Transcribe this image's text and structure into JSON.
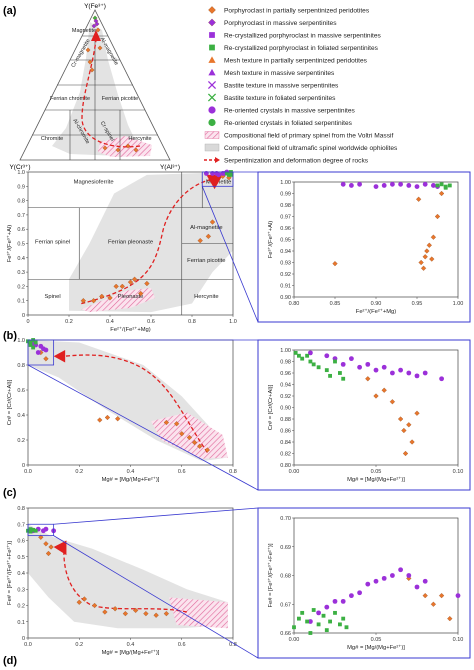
{
  "panel_labels": [
    "(a)",
    "(b)",
    "(c)",
    "(d)"
  ],
  "ternary": {
    "apex_top": "Y(Fe³⁺)",
    "apex_left": "Y(Cr³⁺)",
    "apex_right": "Y(Al³⁺)",
    "fields": [
      "Magnetite",
      "Cr-magnetite",
      "Al-magnetite",
      "Ferrian chromite",
      "Ferrian picotite",
      "Chromite",
      "Al-chromite",
      "Cr-spinel",
      "Hercynite"
    ]
  },
  "legend": [
    {
      "label": "Porphyroclast in partially serpentinized peridotites",
      "marker": "diamond",
      "color": "#e8762c"
    },
    {
      "label": "Porphyroclast in massive serpentinites",
      "marker": "diamond",
      "color": "#9b30d9"
    },
    {
      "label": "Re-crystallized porphyroclast in massive serpentinites",
      "marker": "square",
      "color": "#9b30d9"
    },
    {
      "label": "Re-crystallized porphyroclast in foliated serpentinites",
      "marker": "square",
      "color": "#3cb043"
    },
    {
      "label": "Mesh texture in partially serpentinized peridotites",
      "marker": "triangle",
      "color": "#e8762c"
    },
    {
      "label": "Mesh texture in massive serpentinites",
      "marker": "triangle",
      "color": "#9b30d9"
    },
    {
      "label": "Bastite texture in massive serpentinites",
      "marker": "x",
      "color": "#9b30d9"
    },
    {
      "label": "Bastite texture in foliated serpentinites",
      "marker": "x",
      "color": "#3cb043"
    },
    {
      "label": "Re-oriented crystals in massive serpentinites",
      "marker": "circle",
      "color": "#9b30d9"
    },
    {
      "label": "Re-oriented crystals in foliated serpentinites",
      "marker": "circle",
      "color": "#3cb043"
    },
    {
      "label": "Compositional field of primary spinel from the Voltri Massif",
      "marker": "hatch",
      "color": "#e0679a"
    },
    {
      "label": "Compositional field of ultramafic spinel worldwide ophiolites",
      "marker": "grey",
      "color": "#d9d9d9"
    },
    {
      "label": "Serpentinization and deformation degree of rocks",
      "marker": "arrow",
      "color": "#e02020"
    }
  ],
  "chart_data": [
    {
      "type": "scatter",
      "panel": "(b)",
      "xlabel": "Fe²⁺/(Fe²⁺+Mg)",
      "ylabel": "Fe³⁺/(Fe³⁺+Al)",
      "xlim": [
        0,
        1
      ],
      "ylim": [
        0,
        1
      ],
      "xticks": [
        "0",
        "0.2",
        "0.4",
        "0.6",
        "0.8",
        "1.0"
      ],
      "yticks": [
        "0",
        "0.1",
        "0.2",
        "0.3",
        "0.4",
        "0.5",
        "0.6",
        "0.7",
        "0.8",
        "0.9",
        "1.0"
      ],
      "fields": [
        "Magnesioferrite",
        "Magnetite",
        "Ferrian spinel",
        "Ferrian pleonaste",
        "Al-magnetite",
        "Ferrian picotite",
        "Spinel",
        "Pleonaste",
        "Hercynite"
      ],
      "series": [
        {
          "color": "#e8762c",
          "points": [
            [
              0.27,
              0.1
            ],
            [
              0.32,
              0.1
            ],
            [
              0.36,
              0.13
            ],
            [
              0.4,
              0.12
            ],
            [
              0.43,
              0.2
            ],
            [
              0.46,
              0.2
            ],
            [
              0.5,
              0.23
            ],
            [
              0.52,
              0.25
            ],
            [
              0.55,
              0.15
            ],
            [
              0.58,
              0.22
            ],
            [
              0.84,
              0.52
            ],
            [
              0.88,
              0.55
            ],
            [
              0.9,
              0.65
            ],
            [
              0.95,
              0.97
            ],
            [
              0.98,
              0.96
            ]
          ]
        },
        {
          "color": "#9b30d9",
          "points": [
            [
              0.87,
              0.99
            ],
            [
              0.9,
              0.99
            ],
            [
              0.92,
              0.99
            ],
            [
              0.93,
              0.98
            ],
            [
              0.95,
              0.99
            ],
            [
              0.96,
              0.99
            ],
            [
              0.97,
              1.0
            ],
            [
              0.99,
              0.99
            ]
          ]
        },
        {
          "color": "#3cb043",
          "points": [
            [
              0.97,
              0.99
            ],
            [
              0.98,
              0.99
            ],
            [
              0.99,
              1.0
            ],
            [
              0.98,
              0.98
            ],
            [
              0.99,
              0.98
            ]
          ]
        }
      ]
    },
    {
      "type": "scatter",
      "panel": "(b) inset",
      "xlabel": "Fe²⁺/(Fe²⁺+Mg)",
      "ylabel": "Fe³⁺/(Fe³⁺+Al)",
      "xlim": [
        0.8,
        1.0
      ],
      "ylim": [
        0.9,
        1.0
      ],
      "xticks": [
        "0.80",
        "0.85",
        "0.90",
        "0.95",
        "1.00"
      ],
      "yticks": [
        "0.90",
        "0.91",
        "0.92",
        "0.93",
        "0.94",
        "0.95",
        "0.96",
        "0.97",
        "0.98",
        "0.99",
        "1.00"
      ],
      "series": [
        {
          "color": "#e8762c",
          "points": [
            [
              0.85,
              0.929
            ],
            [
              0.955,
              0.93
            ],
            [
              0.958,
              0.925
            ],
            [
              0.96,
              0.935
            ],
            [
              0.962,
              0.94
            ],
            [
              0.965,
              0.945
            ],
            [
              0.968,
              0.933
            ],
            [
              0.97,
              0.952
            ],
            [
              0.975,
              0.97
            ],
            [
              0.952,
              0.985
            ],
            [
              0.98,
              0.99
            ]
          ]
        },
        {
          "color": "#9b30d9",
          "points": [
            [
              0.86,
              0.998
            ],
            [
              0.87,
              0.997
            ],
            [
              0.88,
              0.998
            ],
            [
              0.9,
              0.996
            ],
            [
              0.91,
              0.997
            ],
            [
              0.92,
              0.998
            ],
            [
              0.93,
              0.998
            ],
            [
              0.94,
              0.997
            ],
            [
              0.95,
              0.996
            ],
            [
              0.96,
              0.998
            ],
            [
              0.97,
              0.997
            ],
            [
              0.975,
              0.996
            ]
          ]
        },
        {
          "color": "#3cb043",
          "points": [
            [
              0.975,
              0.997
            ],
            [
              0.98,
              0.998
            ],
            [
              0.985,
              0.996
            ],
            [
              0.99,
              0.997
            ],
            [
              0.985,
              0.995
            ]
          ]
        }
      ]
    },
    {
      "type": "scatter",
      "panel": "(c)",
      "xlabel": "Mg# = [Mg/(Mg+Fe²⁺)]",
      "ylabel": "Cr# = [Cr/(Cr+Al)]",
      "xlim": [
        0,
        0.8
      ],
      "ylim": [
        0,
        1.0
      ],
      "xticks": [
        "0.0",
        "0.2",
        "0.4",
        "0.6",
        "0.8"
      ],
      "yticks": [
        "0",
        "0.2",
        "0.4",
        "0.6",
        "0.8",
        "1.0"
      ],
      "series": [
        {
          "color": "#e8762c",
          "points": [
            [
              0.05,
              0.9
            ],
            [
              0.07,
              0.85
            ],
            [
              0.28,
              0.36
            ],
            [
              0.31,
              0.38
            ],
            [
              0.35,
              0.37
            ],
            [
              0.54,
              0.34
            ],
            [
              0.58,
              0.33
            ],
            [
              0.6,
              0.25
            ],
            [
              0.63,
              0.22
            ],
            [
              0.65,
              0.18
            ],
            [
              0.67,
              0.15
            ],
            [
              0.7,
              0.12
            ]
          ]
        },
        {
          "color": "#9b30d9",
          "points": [
            [
              0.01,
              0.98
            ],
            [
              0.02,
              0.97
            ],
            [
              0.03,
              0.96
            ],
            [
              0.05,
              0.95
            ],
            [
              0.06,
              0.93
            ],
            [
              0.04,
              0.9
            ],
            [
              0.07,
              0.92
            ]
          ]
        },
        {
          "color": "#3cb043",
          "points": [
            [
              0.0,
              0.99
            ],
            [
              0.01,
              0.98
            ],
            [
              0.01,
              0.96
            ],
            [
              0.02,
              1.0
            ],
            [
              0.02,
              0.94
            ],
            [
              0.03,
              0.98
            ]
          ]
        }
      ]
    },
    {
      "type": "scatter",
      "panel": "(c) inset",
      "xlabel": "Mg# = [Mg/(Mg+Fe²⁺)]",
      "ylabel": "Cr# = [Cr/(Cr+Al)]",
      "xlim": [
        0.0,
        0.1
      ],
      "ylim": [
        0.8,
        1.0
      ],
      "xticks": [
        "0.00",
        "0.05",
        "0.10"
      ],
      "yticks": [
        "0.80",
        "0.82",
        "0.84",
        "0.86",
        "0.88",
        "0.90",
        "0.92",
        "0.94",
        "0.96",
        "0.98",
        "1.00"
      ],
      "series": [
        {
          "color": "#e8762c",
          "points": [
            [
              0.045,
              0.95
            ],
            [
              0.05,
              0.92
            ],
            [
              0.06,
              0.91
            ],
            [
              0.065,
              0.88
            ],
            [
              0.067,
              0.86
            ],
            [
              0.07,
              0.87
            ],
            [
              0.072,
              0.84
            ],
            [
              0.075,
              0.89
            ],
            [
              0.068,
              0.82
            ],
            [
              0.055,
              0.93
            ]
          ]
        },
        {
          "color": "#9b30d9",
          "points": [
            [
              0.01,
              0.995
            ],
            [
              0.02,
              0.99
            ],
            [
              0.025,
              0.985
            ],
            [
              0.03,
              0.975
            ],
            [
              0.035,
              0.985
            ],
            [
              0.04,
              0.97
            ],
            [
              0.045,
              0.975
            ],
            [
              0.05,
              0.965
            ],
            [
              0.055,
              0.97
            ],
            [
              0.06,
              0.96
            ],
            [
              0.065,
              0.965
            ],
            [
              0.07,
              0.96
            ],
            [
              0.075,
              0.955
            ],
            [
              0.08,
              0.96
            ],
            [
              0.09,
              0.95
            ]
          ]
        },
        {
          "color": "#3cb043",
          "points": [
            [
              0.001,
              0.995
            ],
            [
              0.003,
              0.99
            ],
            [
              0.005,
              0.985
            ],
            [
              0.008,
              0.99
            ],
            [
              0.01,
              0.98
            ],
            [
              0.012,
              0.975
            ],
            [
              0.015,
              0.97
            ],
            [
              0.02,
              0.965
            ],
            [
              0.022,
              0.955
            ],
            [
              0.025,
              0.98
            ],
            [
              0.028,
              0.96
            ],
            [
              0.03,
              0.95
            ]
          ]
        }
      ]
    },
    {
      "type": "scatter",
      "panel": "(d)",
      "xlabel": "Mg# = [Mg/(Mg+Fe²⁺)]",
      "ylabel": "Fe# = [Fe³⁺/(Fe³⁺+Fe²⁺)]",
      "xlim": [
        0,
        0.8
      ],
      "ylim": [
        0,
        0.8
      ],
      "xticks": [
        "0.0",
        "0.2",
        "0.4",
        "0.6",
        "0.8"
      ],
      "yticks": [
        "0",
        "0.1",
        "0.2",
        "0.3",
        "0.4",
        "0.5",
        "0.6",
        "0.7",
        "0.8"
      ],
      "series": [
        {
          "color": "#e8762c",
          "points": [
            [
              0.05,
              0.62
            ],
            [
              0.07,
              0.58
            ],
            [
              0.09,
              0.56
            ],
            [
              0.08,
              0.52
            ],
            [
              0.2,
              0.22
            ],
            [
              0.22,
              0.24
            ],
            [
              0.26,
              0.2
            ],
            [
              0.3,
              0.16
            ],
            [
              0.34,
              0.18
            ],
            [
              0.38,
              0.15
            ],
            [
              0.42,
              0.17
            ],
            [
              0.46,
              0.15
            ],
            [
              0.5,
              0.14
            ],
            [
              0.54,
              0.15
            ]
          ]
        },
        {
          "color": "#9b30d9",
          "points": [
            [
              0.02,
              0.66
            ],
            [
              0.04,
              0.67
            ],
            [
              0.06,
              0.66
            ],
            [
              0.07,
              0.67
            ],
            [
              0.1,
              0.66
            ]
          ]
        },
        {
          "color": "#3cb043",
          "points": [
            [
              0.0,
              0.66
            ],
            [
              0.01,
              0.67
            ],
            [
              0.02,
              0.665
            ],
            [
              0.01,
              0.655
            ],
            [
              0.03,
              0.66
            ]
          ]
        }
      ]
    },
    {
      "type": "scatter",
      "panel": "(d) inset",
      "xlabel": "Mg# = [Mg/(Mg+Fe²⁺)]",
      "ylabel": "Fe# = [Fe³⁺/(Fe³⁺+Fe²⁺)]",
      "xlim": [
        0.0,
        0.1
      ],
      "ylim": [
        0.66,
        0.7
      ],
      "xticks": [
        "0.00",
        "0.05",
        "0.10"
      ],
      "yticks": [
        "0.66",
        "0.67",
        "0.68",
        "0.69",
        "0.70"
      ],
      "series": [
        {
          "color": "#e8762c",
          "points": [
            [
              0.07,
              0.679
            ],
            [
              0.08,
              0.673
            ],
            [
              0.085,
              0.67
            ],
            [
              0.09,
              0.673
            ],
            [
              0.095,
              0.665
            ]
          ]
        },
        {
          "color": "#9b30d9",
          "points": [
            [
              0.01,
              0.664
            ],
            [
              0.015,
              0.667
            ],
            [
              0.02,
              0.669
            ],
            [
              0.025,
              0.671
            ],
            [
              0.03,
              0.671
            ],
            [
              0.035,
              0.673
            ],
            [
              0.04,
              0.674
            ],
            [
              0.045,
              0.677
            ],
            [
              0.05,
              0.678
            ],
            [
              0.055,
              0.679
            ],
            [
              0.06,
              0.68
            ],
            [
              0.065,
              0.682
            ],
            [
              0.07,
              0.68
            ],
            [
              0.075,
              0.676
            ],
            [
              0.08,
              0.678
            ],
            [
              0.1,
              0.673
            ]
          ]
        },
        {
          "color": "#3cb043",
          "points": [
            [
              0.0,
              0.662
            ],
            [
              0.003,
              0.665
            ],
            [
              0.005,
              0.667
            ],
            [
              0.008,
              0.664
            ],
            [
              0.01,
              0.66
            ],
            [
              0.012,
              0.668
            ],
            [
              0.015,
              0.663
            ],
            [
              0.018,
              0.666
            ],
            [
              0.02,
              0.661
            ],
            [
              0.022,
              0.664
            ],
            [
              0.025,
              0.667
            ],
            [
              0.028,
              0.663
            ],
            [
              0.03,
              0.665
            ],
            [
              0.032,
              0.662
            ]
          ]
        }
      ]
    }
  ]
}
